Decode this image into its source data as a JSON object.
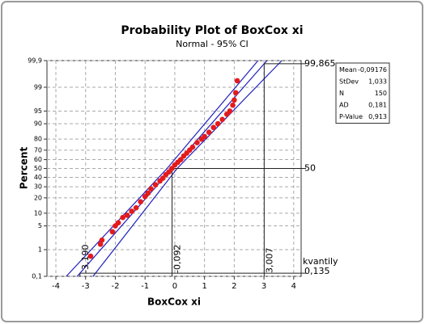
{
  "chart_data": {
    "type": "probability",
    "title": "Probability Plot of BoxCox xi",
    "subtitle": "Normal - 95% CI",
    "x_label": "BoxCox xi",
    "y_label": "Percent",
    "xlim": [
      -4.3,
      4.25
    ],
    "xticks": [
      -4,
      -3,
      -2,
      -1,
      0,
      1,
      2,
      3,
      4
    ],
    "ylim": [
      0.1,
      99.9
    ],
    "yticks": [
      {
        "value": 0.1,
        "label": "0,1"
      },
      1,
      5,
      10,
      20,
      30,
      40,
      50,
      60,
      70,
      80,
      90,
      95,
      99,
      {
        "value": 99.9,
        "label": "99,9"
      }
    ],
    "grid": true,
    "point_color": "#e41a1c",
    "line_color": "#1f1fbf",
    "x": [
      -2.83,
      -2.5,
      -2.45,
      -2.1,
      -2.0,
      -1.9,
      -1.75,
      -1.6,
      -1.45,
      -1.3,
      -1.15,
      -1.0,
      -0.9,
      -0.8,
      -0.65,
      -0.5,
      -0.4,
      -0.3,
      -0.2,
      -0.1,
      0.0,
      0.1,
      0.2,
      0.3,
      0.4,
      0.5,
      0.6,
      0.75,
      0.9,
      1.0,
      1.15,
      1.3,
      1.45,
      1.6,
      1.75,
      1.85,
      1.95,
      2.0,
      2.05,
      2.1
    ],
    "y": [
      0.6,
      1.5,
      2,
      3.5,
      5,
      6,
      8,
      9,
      11,
      13,
      17,
      21,
      24,
      28,
      32,
      36,
      39,
      43,
      46,
      50,
      54,
      57,
      60,
      64,
      67,
      70,
      73,
      77,
      80,
      82,
      85,
      88,
      90,
      92,
      94,
      95,
      96.5,
      97.5,
      98.5,
      99.4
    ],
    "ci_percent": [
      0.1,
      50,
      99.9
    ],
    "ci_lower": [
      -3.65,
      -0.26,
      2.8
    ],
    "ci_upper": [
      -2.75,
      0.08,
      3.6
    ],
    "reference_percent": [
      {
        "value": 0.135,
        "label": "0,135"
      },
      {
        "value": 50,
        "label": "50"
      },
      {
        "value": 99.865,
        "label": "99,865"
      }
    ],
    "reference_quantile": [
      {
        "value": -3.19,
        "label": "-3,190"
      },
      {
        "value": -0.092,
        "label": "-0,092"
      },
      {
        "value": 3.007,
        "label": "3,007"
      }
    ],
    "quantile_label": "kvantily",
    "stats": [
      [
        "Mean",
        "-0,09176"
      ],
      [
        "StDev",
        "1,033"
      ],
      [
        "N",
        "150"
      ],
      [
        "AD",
        "0,181"
      ],
      [
        "P-Value",
        "0,913"
      ]
    ]
  }
}
